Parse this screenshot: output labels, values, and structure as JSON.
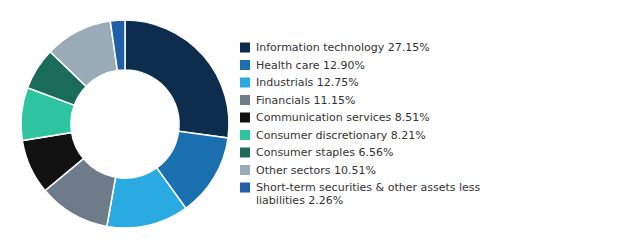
{
  "chart_data": {
    "type": "pie",
    "categories": [
      "Information technology 27.15%",
      "Health care 12.90%",
      "Industrials 12.75%",
      "Financials 11.15%",
      "Communication services 8.51%",
      "Consumer discretionary 8.21%",
      "Consumer staples 6.56%",
      "Other sectors 10.51%",
      "Short-term securities & other assets less\nliabilities 2.26%"
    ],
    "values": [
      27.15,
      12.9,
      12.75,
      11.15,
      8.51,
      8.21,
      6.56,
      10.51,
      2.26
    ],
    "colors": [
      "#0d2d4e",
      "#1a6faf",
      "#29abe2",
      "#6d7b8a",
      "#111111",
      "#2ec4a0",
      "#1b6b5a",
      "#9aabb8",
      "#1e5fa8"
    ],
    "legend": "right"
  }
}
